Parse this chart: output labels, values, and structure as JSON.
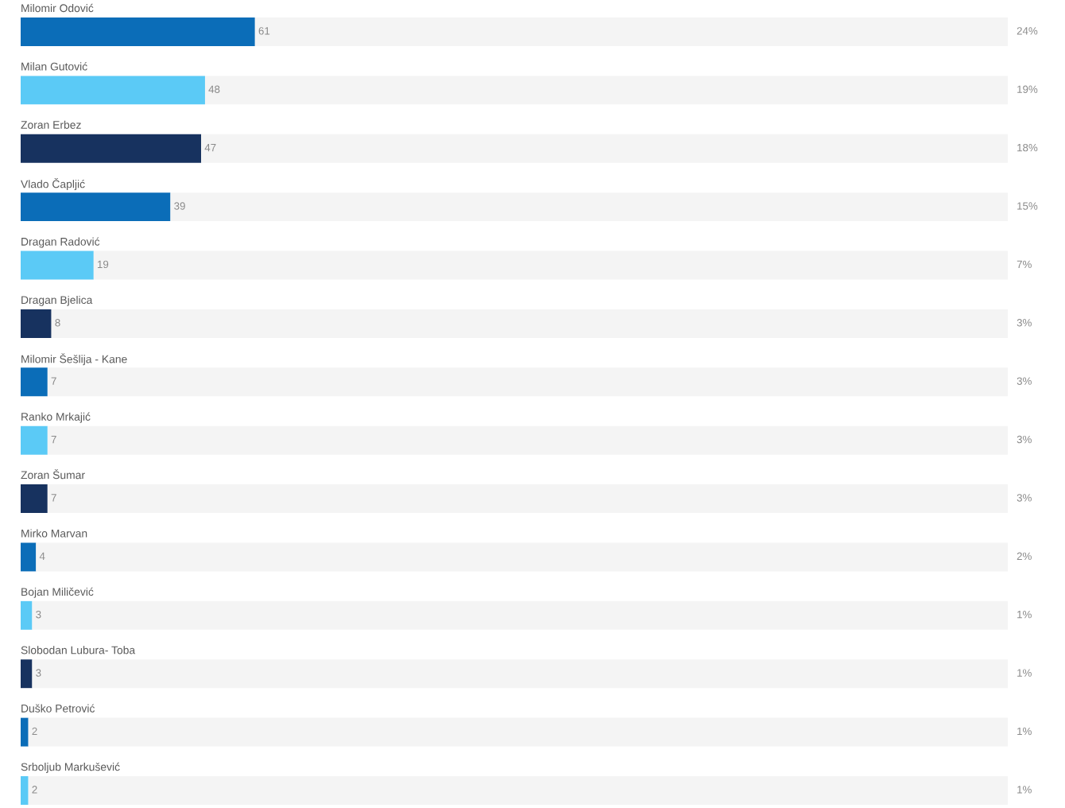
{
  "chart_data": {
    "type": "bar",
    "orientation": "horizontal",
    "stacked": true,
    "categories": [
      "Milomir Odović",
      "Milan Gutović",
      "Zoran Erbez",
      "Vlado Čapljić",
      "Dragan Radović",
      "Dragan Bjelica",
      "Milomir Šešlija - Kane",
      "Ranko Mrkajić",
      "Zoran Šumar",
      "Mirko Marvan",
      "Bojan Miličević",
      "Slobodan Lubura- Toba",
      "Duško Petrović",
      "Srboljub Markušević"
    ],
    "series": [
      {
        "colors": [
          "#0b6db8",
          "#5bcaf6",
          "#17325f",
          "#0b6db8",
          "#5bcaf6",
          "#17325f",
          "#0b6db8",
          "#5bcaf6",
          "#17325f",
          "#0b6db8",
          "#5bcaf6",
          "#17325f",
          "#0b6db8",
          "#5bcaf6"
        ],
        "values": [
          61,
          48,
          47,
          39,
          19,
          8,
          7,
          7,
          7,
          4,
          3,
          3,
          2,
          2
        ],
        "value_labels": [
          "61",
          "48",
          "47",
          "39",
          "19",
          "8",
          "7",
          "7",
          "7",
          "4",
          "3",
          "3",
          "2",
          "2"
        ]
      },
      {
        "color": "#f4f4f4",
        "values": [
          196,
          209,
          210,
          218,
          238,
          249,
          250,
          250,
          250,
          253,
          254,
          254,
          255,
          255
        ]
      }
    ],
    "annotations": [
      "24%",
      "19%",
      "18%",
      "15%",
      "7%",
      "3%",
      "3%",
      "3%",
      "3%",
      "2%",
      "1%",
      "1%",
      "1%",
      "1%"
    ],
    "xlim": [
      0,
      257
    ],
    "tick_labels": "y",
    "grid": false,
    "legend": false
  }
}
